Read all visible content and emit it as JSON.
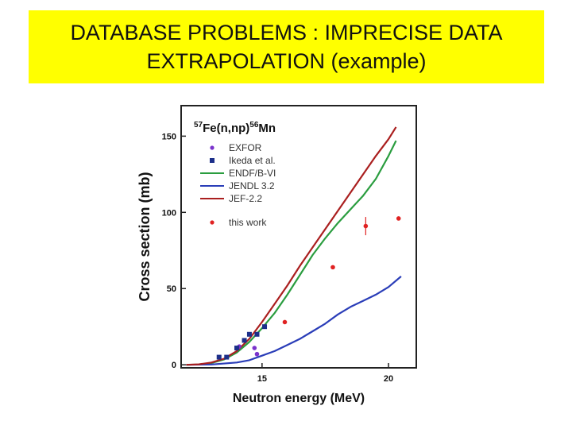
{
  "slide": {
    "title_line1": "DATABASE PROBLEMS : IMPRECISE DATA",
    "title_line2": "EXTRAPOLATION (example)"
  },
  "chart_data": {
    "type": "scatter",
    "reaction": {
      "mass_target": "57",
      "target_and_channel": "Fe(n,np)",
      "mass_product": "56",
      "product": "Mn"
    },
    "xlabel": "Neutron energy (MeV)",
    "ylabel": "Cross section (mb)",
    "xlim": [
      11.8,
      21.1
    ],
    "ylim": [
      -2,
      170
    ],
    "x_ticks": [
      15,
      20
    ],
    "y_ticks": [
      0,
      50,
      100,
      150
    ],
    "grid": false,
    "legend_position": "top-left",
    "series": [
      {
        "name": "EXFOR",
        "kind": "points",
        "marker": "circle",
        "color": "#7a33cc",
        "points": [
          [
            14.1,
            12
          ],
          [
            14.7,
            11
          ],
          [
            14.8,
            7
          ]
        ]
      },
      {
        "name": "Ikeda et al.",
        "kind": "points",
        "marker": "square",
        "color": "#1c2f8a",
        "points": [
          [
            13.3,
            5
          ],
          [
            13.6,
            5
          ],
          [
            14.0,
            11
          ],
          [
            14.3,
            16
          ],
          [
            14.5,
            20
          ],
          [
            14.8,
            20
          ],
          [
            15.1,
            25
          ]
        ]
      },
      {
        "name": "ENDF/B-VI",
        "kind": "line",
        "color": "#2a9d3f",
        "points": [
          [
            12.0,
            0
          ],
          [
            12.5,
            0.2
          ],
          [
            13.0,
            1.2
          ],
          [
            13.5,
            3.5
          ],
          [
            14.0,
            8
          ],
          [
            14.5,
            15
          ],
          [
            15.0,
            24
          ],
          [
            15.5,
            34
          ],
          [
            16.0,
            46
          ],
          [
            16.5,
            59
          ],
          [
            17.0,
            72
          ],
          [
            17.5,
            83
          ],
          [
            18.0,
            93
          ],
          [
            18.5,
            102
          ],
          [
            19.0,
            111
          ],
          [
            19.5,
            122
          ],
          [
            20.0,
            137
          ],
          [
            20.3,
            147
          ]
        ]
      },
      {
        "name": "JENDL 3.2",
        "kind": "line",
        "color": "#2a3db8",
        "points": [
          [
            12.0,
            0
          ],
          [
            13.0,
            0.2
          ],
          [
            14.0,
            1.5
          ],
          [
            14.5,
            3
          ],
          [
            15.0,
            6
          ],
          [
            15.5,
            9
          ],
          [
            16.0,
            13
          ],
          [
            16.5,
            17
          ],
          [
            17.0,
            22
          ],
          [
            17.5,
            27
          ],
          [
            18.0,
            33
          ],
          [
            18.5,
            38
          ],
          [
            19.0,
            42
          ],
          [
            19.5,
            46
          ],
          [
            20.0,
            51
          ],
          [
            20.5,
            58
          ]
        ]
      },
      {
        "name": "JEF-2.2",
        "kind": "line",
        "color": "#aa1f1f",
        "points": [
          [
            12.0,
            0
          ],
          [
            12.5,
            0.3
          ],
          [
            13.0,
            1.5
          ],
          [
            13.5,
            4
          ],
          [
            14.0,
            9
          ],
          [
            14.5,
            17
          ],
          [
            15.0,
            28
          ],
          [
            15.5,
            40
          ],
          [
            16.0,
            52
          ],
          [
            16.5,
            65
          ],
          [
            17.0,
            77
          ],
          [
            17.5,
            89
          ],
          [
            18.0,
            101
          ],
          [
            18.5,
            113
          ],
          [
            19.0,
            125
          ],
          [
            19.5,
            137
          ],
          [
            20.0,
            148
          ],
          [
            20.3,
            156
          ]
        ]
      },
      {
        "name": "this work",
        "kind": "points",
        "marker": "circle",
        "color": "#e02222",
        "points": [
          [
            15.9,
            28
          ],
          [
            17.8,
            64
          ],
          [
            19.1,
            91
          ],
          [
            20.4,
            96
          ]
        ],
        "y_errors": [
          0,
          0,
          6,
          0
        ]
      }
    ]
  }
}
